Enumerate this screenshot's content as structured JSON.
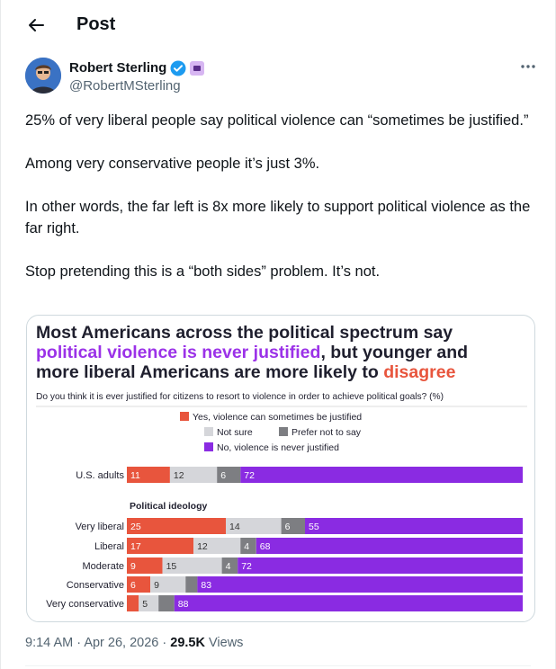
{
  "header": {
    "title": "Post",
    "back_icon": "arrow-left-icon"
  },
  "author": {
    "name": "Robert Sterling",
    "handle": "@RobertMSterling",
    "verified_icon": "verified-badge-icon",
    "affiliation_icon": "affiliate-badge-icon",
    "more_icon": "more-horizontal-icon"
  },
  "tweet": {
    "paragraphs": [
      "25% of very liberal people say political violence can “sometimes be justified.”",
      "Among very conservative people it’s just 3%.",
      "In other words, the far left is 8x more likely to support political violence as the far right.",
      "Stop pretending this is a “both sides” problem. It’s not."
    ],
    "time": "9:14 AM",
    "date": "Apr 26, 2026",
    "views_count": "29.5K",
    "views_label": "Views",
    "separator": "·"
  },
  "colors": {
    "yes": "#e8553d",
    "not_sure": "#d5d6da",
    "prefer_not": "#7d7e82",
    "no": "#8a2be2",
    "title_purple": "#9b32e8",
    "title_red": "#e8553d"
  },
  "chart_data": {
    "type": "bar",
    "stacked": true,
    "orientation": "horizontal",
    "title_parts": [
      {
        "text": "Most Americans across the political spectrum say",
        "color": "dark"
      },
      {
        "text": "political violence is never justified",
        "color": "purple"
      },
      {
        "text": ", but younger and",
        "color": "dark"
      },
      {
        "text": "more liberal Americans are more likely to ",
        "color": "dark"
      },
      {
        "text": "disagree",
        "color": "red"
      }
    ],
    "subtitle": "Do you think it is ever justified for citizens to resort to violence in order to achieve political goals? (%)",
    "legend": [
      {
        "label": "Yes, violence can sometimes be justified",
        "color": "#e8553d"
      },
      {
        "label": "Not sure",
        "color": "#d5d6da"
      },
      {
        "label": "Prefer not to say",
        "color": "#7d7e82"
      },
      {
        "label": "No, violence is never justified",
        "color": "#8a2be2"
      }
    ],
    "section_label": "Political ideology",
    "series_order": [
      "Yes",
      "Not sure",
      "Prefer not to say",
      "No"
    ],
    "rows": [
      {
        "category": "U.S. adults",
        "values": [
          11,
          12,
          6,
          72
        ],
        "labels": [
          "11",
          "12",
          "6",
          "72"
        ]
      },
      {
        "category": "Very liberal",
        "values": [
          25,
          14,
          6,
          55
        ],
        "labels": [
          "25",
          "14",
          "6",
          "55"
        ]
      },
      {
        "category": "Liberal",
        "values": [
          17,
          12,
          4,
          68
        ],
        "labels": [
          "17",
          "12",
          "4",
          "68"
        ]
      },
      {
        "category": "Moderate",
        "values": [
          9,
          15,
          4,
          72
        ],
        "labels": [
          "9",
          "15",
          "4",
          "72"
        ]
      },
      {
        "category": "Conservative",
        "values": [
          6,
          9,
          3,
          83
        ],
        "labels": [
          "6",
          "9",
          "",
          "83"
        ]
      },
      {
        "category": "Very conservative",
        "values": [
          3,
          5,
          4,
          88
        ],
        "labels": [
          "",
          "5",
          "",
          "88"
        ]
      }
    ],
    "xlim": [
      0,
      100
    ]
  }
}
